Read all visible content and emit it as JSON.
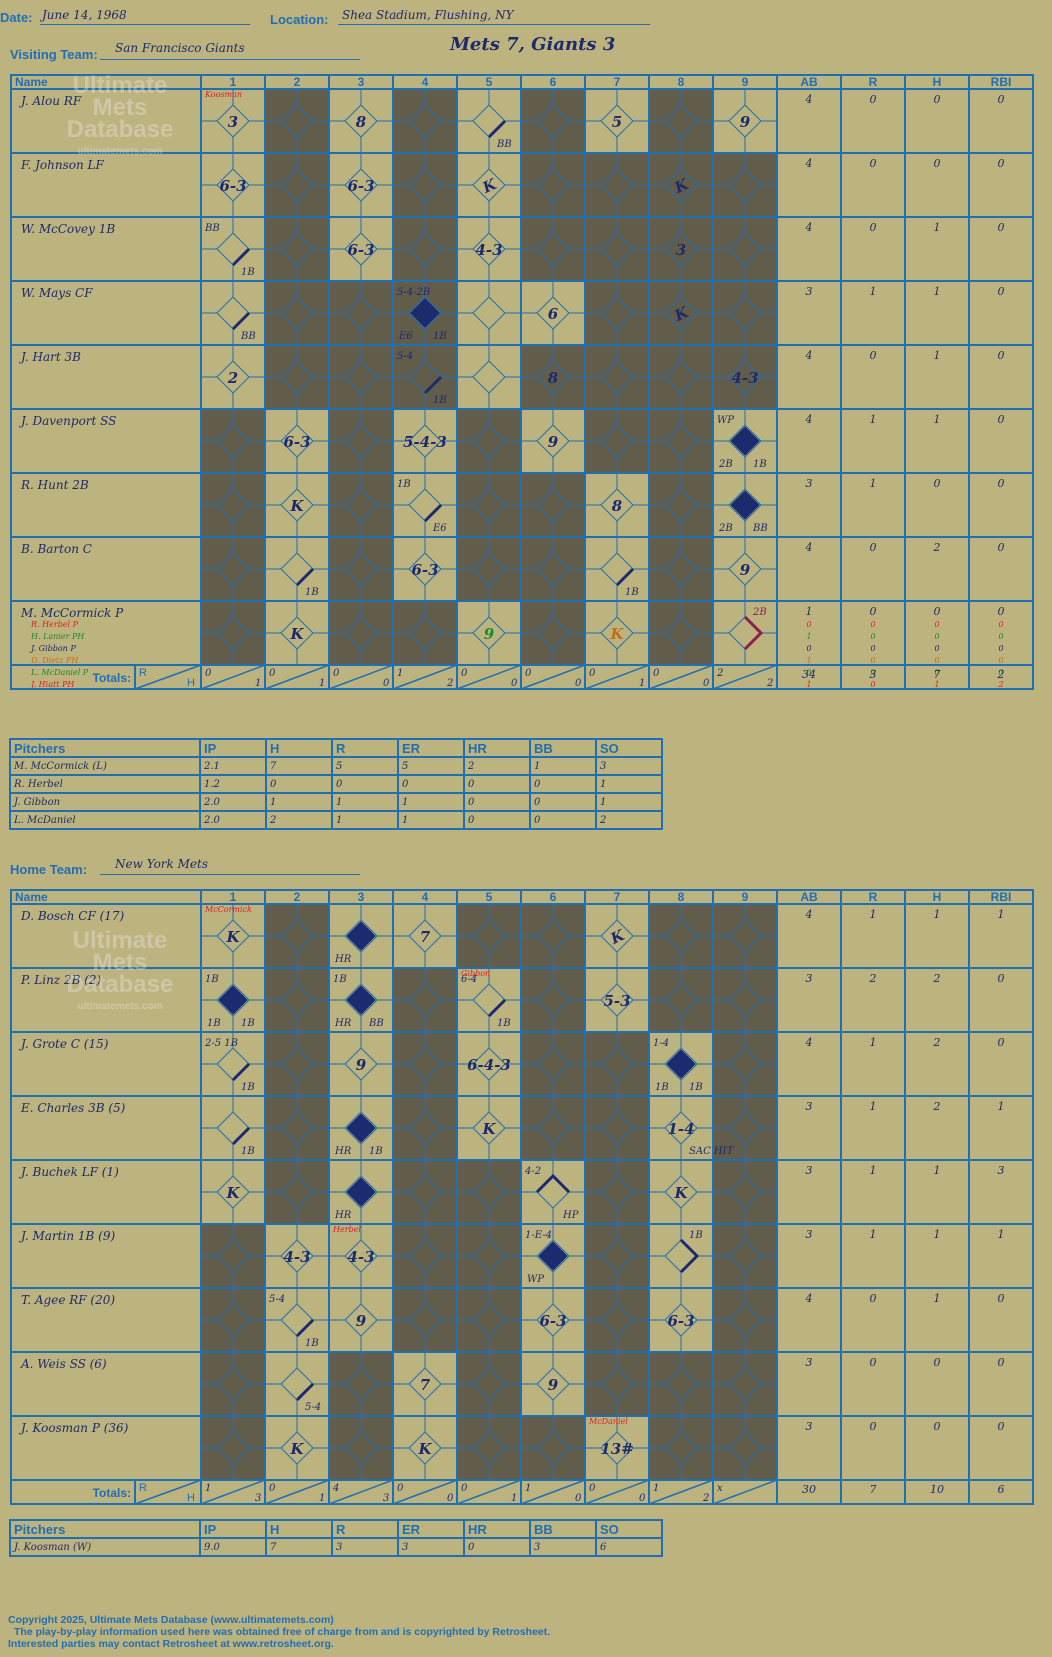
{
  "labels": {
    "date": "Date:",
    "location": "Location:",
    "visiting": "Visiting Team:",
    "home": "Home Team:",
    "name": "Name",
    "totals": "Totals:",
    "r": "R",
    "h": "H",
    "pitchers": "Pitchers"
  },
  "game": {
    "date": "June 14, 1968",
    "location": "Shea Stadium, Flushing, NY",
    "title": "Mets 7, Giants 3"
  },
  "innings": [
    "1",
    "2",
    "3",
    "4",
    "5",
    "6",
    "7",
    "8",
    "9"
  ],
  "stat_headers": [
    "AB",
    "R",
    "H",
    "RBI"
  ],
  "pitch_headers": [
    "IP",
    "H",
    "R",
    "ER",
    "HR",
    "BB",
    "SO"
  ],
  "colors": {
    "bg": "#bdb37e",
    "line": "#1f6fb4",
    "dark": "#625d4b",
    "ink": "#1c2a6e",
    "red": "#e02020",
    "green": "#1a8a30"
  },
  "watermark": {
    "line1": "Ultimate",
    "line2": "Mets",
    "line3": "Database",
    "url": "ultimatemets.com"
  },
  "visitors": {
    "team": "San Francisco Giants",
    "batters": [
      {
        "name": "J. Alou RF",
        "stats": [
          "4",
          "0",
          "0",
          "0"
        ]
      },
      {
        "name": "F. Johnson LF",
        "stats": [
          "4",
          "0",
          "0",
          "0"
        ]
      },
      {
        "name": "W. McCovey 1B",
        "stats": [
          "4",
          "0",
          "1",
          "0"
        ]
      },
      {
        "name": "W. Mays CF",
        "stats": [
          "3",
          "1",
          "1",
          "0"
        ]
      },
      {
        "name": "J. Hart 3B",
        "stats": [
          "4",
          "0",
          "1",
          "0"
        ]
      },
      {
        "name": "J. Davenport SS",
        "stats": [
          "4",
          "1",
          "1",
          "0"
        ]
      },
      {
        "name": "R. Hunt 2B",
        "stats": [
          "3",
          "1",
          "0",
          "0"
        ]
      },
      {
        "name": "B. Barton C",
        "stats": [
          "4",
          "0",
          "2",
          "0"
        ]
      },
      {
        "name": "M. McCormick P",
        "stats": [
          "1",
          "0",
          "0",
          "0"
        ]
      }
    ],
    "subs": [
      {
        "name": "R. Herbel P",
        "color": "#e02020",
        "stats": [
          "0",
          "0",
          "0",
          "0"
        ]
      },
      {
        "name": "H. Lanier PH",
        "color": "#1a8a30",
        "stats": [
          "1",
          "0",
          "0",
          "0"
        ]
      },
      {
        "name": "J. Gibbon P",
        "color": "#1c2a6e",
        "stats": [
          "0",
          "0",
          "0",
          "0"
        ]
      },
      {
        "name": "D. Dietz PH",
        "color": "#c07010",
        "stats": [
          "1",
          "0",
          "0",
          "0"
        ]
      },
      {
        "name": "L. McDaniel P",
        "color": "#1a8a30",
        "stats": [
          "0",
          "0",
          "0",
          "0"
        ]
      },
      {
        "name": "J. Hiatt PH",
        "color": "#e02020",
        "stats": [
          "1",
          "0",
          "1",
          "2"
        ]
      }
    ],
    "dark": [
      [
        1,
        3,
        5,
        7
      ],
      [
        1,
        3,
        5,
        6,
        7,
        8
      ],
      [
        1,
        3,
        5,
        6,
        7,
        8
      ],
      [
        1,
        2,
        3,
        6,
        7,
        8
      ],
      [
        1,
        2,
        3,
        5,
        6,
        7,
        8
      ],
      [
        0,
        2,
        4,
        6,
        7
      ],
      [
        0,
        2,
        4,
        5,
        7
      ],
      [
        0,
        2,
        4,
        5,
        7
      ],
      [
        0,
        2,
        3,
        5,
        7
      ]
    ],
    "plays": [
      {
        "r": 0,
        "c": 0,
        "t": "3"
      },
      {
        "r": 0,
        "c": 2,
        "t": "8"
      },
      {
        "r": 0,
        "c": 4,
        "t": "BB",
        "type": "walk"
      },
      {
        "r": 0,
        "c": 6,
        "t": "5"
      },
      {
        "r": 0,
        "c": 8,
        "t": "9"
      },
      {
        "r": 1,
        "c": 0,
        "t": "6-3"
      },
      {
        "r": 1,
        "c": 2,
        "t": "6-3"
      },
      {
        "r": 1,
        "c": 4,
        "t": "K",
        "rev": true
      },
      {
        "r": 1,
        "c": 7,
        "t": "K",
        "rev": true
      },
      {
        "r": 2,
        "c": 0,
        "t": "1B",
        "type": "hit",
        "extra": "BB"
      },
      {
        "r": 2,
        "c": 2,
        "t": "6-3"
      },
      {
        "r": 2,
        "c": 4,
        "t": "4-3"
      },
      {
        "r": 2,
        "c": 7,
        "t": "3"
      },
      {
        "r": 3,
        "c": 0,
        "t": "BB",
        "type": "walk"
      },
      {
        "r": 3,
        "c": 3,
        "t": "E6",
        "type": "run",
        "extra": "5-4-2B",
        "extra2": "1B"
      },
      {
        "r": 3,
        "c": 5,
        "t": "6"
      },
      {
        "r": 3,
        "c": 7,
        "t": "K",
        "rev": true
      },
      {
        "r": 4,
        "c": 0,
        "t": "2"
      },
      {
        "r": 4,
        "c": 3,
        "t": "1B",
        "type": "hit",
        "extra": "5-4"
      },
      {
        "r": 4,
        "c": 5,
        "t": "8"
      },
      {
        "r": 4,
        "c": 8,
        "t": "4-3"
      },
      {
        "r": 5,
        "c": 1,
        "t": "6-3"
      },
      {
        "r": 5,
        "c": 3,
        "t": "5-4-3"
      },
      {
        "r": 5,
        "c": 5,
        "t": "9"
      },
      {
        "r": 5,
        "c": 8,
        "t": "2B",
        "type": "run",
        "extra": "WP",
        "extra2": "1B"
      },
      {
        "r": 6,
        "c": 1,
        "t": "K"
      },
      {
        "r": 6,
        "c": 3,
        "t": "E6",
        "type": "hit",
        "extra": "1B"
      },
      {
        "r": 6,
        "c": 6,
        "t": "8"
      },
      {
        "r": 6,
        "c": 8,
        "t": "2B",
        "type": "run",
        "extra2": "BB"
      },
      {
        "r": 7,
        "c": 1,
        "t": "1B",
        "type": "hit"
      },
      {
        "r": 7,
        "c": 3,
        "t": "6-3"
      },
      {
        "r": 7,
        "c": 6,
        "t": "1B",
        "type": "hit"
      },
      {
        "r": 7,
        "c": 8,
        "t": "9"
      },
      {
        "r": 8,
        "c": 1,
        "t": "K"
      },
      {
        "r": 8,
        "c": 4,
        "t": "9",
        "color": "#1a8a30"
      },
      {
        "r": 8,
        "c": 6,
        "t": "K",
        "color": "#c07010"
      },
      {
        "r": 8,
        "c": 8,
        "t": "2B",
        "type": "double",
        "color": "#8a2050"
      }
    ],
    "pitcher_marks": [
      {
        "r": 0,
        "c": 0,
        "t": "Koosman"
      }
    ],
    "totals": [
      [
        "0",
        "1"
      ],
      [
        "0",
        "1"
      ],
      [
        "0",
        "0"
      ],
      [
        "1",
        "2"
      ],
      [
        "0",
        "0"
      ],
      [
        "0",
        "0"
      ],
      [
        "0",
        "1"
      ],
      [
        "0",
        "0"
      ],
      [
        "2",
        "2"
      ]
    ],
    "stat_totals": [
      "34",
      "3",
      "7",
      "2"
    ],
    "pitchers": [
      {
        "name": "M. McCormick (L)",
        "stats": [
          "2.1",
          "7",
          "5",
          "5",
          "2",
          "1",
          "3"
        ]
      },
      {
        "name": "R. Herbel",
        "stats": [
          "1.2",
          "0",
          "0",
          "0",
          "0",
          "0",
          "1"
        ]
      },
      {
        "name": "J. Gibbon",
        "stats": [
          "2.0",
          "1",
          "1",
          "1",
          "0",
          "0",
          "1"
        ]
      },
      {
        "name": "L. McDaniel",
        "stats": [
          "2.0",
          "2",
          "1",
          "1",
          "0",
          "0",
          "2"
        ]
      }
    ]
  },
  "home": {
    "team": "New York Mets",
    "batters": [
      {
        "name": "D. Bosch CF (17)",
        "stats": [
          "4",
          "1",
          "1",
          "1"
        ]
      },
      {
        "name": "P. Linz 2B (2)",
        "stats": [
          "3",
          "2",
          "2",
          "0"
        ]
      },
      {
        "name": "J. Grote C (15)",
        "stats": [
          "4",
          "1",
          "2",
          "0"
        ]
      },
      {
        "name": "E. Charles 3B (5)",
        "stats": [
          "3",
          "1",
          "2",
          "1"
        ]
      },
      {
        "name": "J. Buchek LF (1)",
        "stats": [
          "3",
          "1",
          "1",
          "3"
        ]
      },
      {
        "name": "J. Martin 1B (9)",
        "stats": [
          "3",
          "1",
          "1",
          "1"
        ]
      },
      {
        "name": "T. Agee RF (20)",
        "stats": [
          "4",
          "0",
          "1",
          "0"
        ]
      },
      {
        "name": "A. Weis SS (6)",
        "stats": [
          "3",
          "0",
          "0",
          "0"
        ]
      },
      {
        "name": "J. Koosman P (36)",
        "stats": [
          "3",
          "0",
          "0",
          "0"
        ]
      }
    ],
    "subs": [],
    "dark": [
      [
        1,
        4,
        5,
        7,
        8
      ],
      [
        1,
        3,
        5,
        7,
        8
      ],
      [
        1,
        3,
        5,
        6,
        8
      ],
      [
        1,
        3,
        5,
        6,
        8
      ],
      [
        1,
        3,
        4,
        6,
        8
      ],
      [
        0,
        3,
        4,
        6,
        8
      ],
      [
        0,
        3,
        4,
        6,
        8
      ],
      [
        0,
        2,
        4,
        6,
        7,
        8
      ],
      [
        0,
        2,
        4,
        5,
        7,
        8
      ]
    ],
    "plays": [
      {
        "r": 0,
        "c": 0,
        "t": "K"
      },
      {
        "r": 0,
        "c": 2,
        "t": "HR",
        "type": "hr"
      },
      {
        "r": 0,
        "c": 3,
        "t": "7"
      },
      {
        "r": 0,
        "c": 6,
        "t": "K",
        "rev": true
      },
      {
        "r": 1,
        "c": 0,
        "t": "1B",
        "type": "run",
        "extra": "1B",
        "extra2": "1B"
      },
      {
        "r": 1,
        "c": 2,
        "t": "HR",
        "type": "run",
        "extra": "1B",
        "extra2": "BB"
      },
      {
        "r": 1,
        "c": 4,
        "t": "1B",
        "type": "hit",
        "extra": "6-4"
      },
      {
        "r": 1,
        "c": 6,
        "t": "5-3"
      },
      {
        "r": 2,
        "c": 0,
        "t": "1B",
        "type": "hit",
        "extra": "2-5 1B"
      },
      {
        "r": 2,
        "c": 2,
        "t": "9"
      },
      {
        "r": 2,
        "c": 4,
        "t": "6-4-3"
      },
      {
        "r": 2,
        "c": 7,
        "t": "1B",
        "type": "run",
        "extra": "1-4",
        "extra2": "1B"
      },
      {
        "r": 3,
        "c": 0,
        "t": "1B",
        "type": "hit"
      },
      {
        "r": 3,
        "c": 2,
        "t": "HR",
        "type": "run",
        "extra2": "1B"
      },
      {
        "r": 3,
        "c": 4,
        "t": "K"
      },
      {
        "r": 3,
        "c": 7,
        "t": "1-4",
        "extra2": "SAC HIT"
      },
      {
        "r": 4,
        "c": 0,
        "t": "K"
      },
      {
        "r": 4,
        "c": 2,
        "t": "HR",
        "type": "hr"
      },
      {
        "r": 4,
        "c": 5,
        "t": "HP",
        "type": "open",
        "extra": "4-2"
      },
      {
        "r": 4,
        "c": 7,
        "t": "K"
      },
      {
        "r": 5,
        "c": 1,
        "t": "4-3"
      },
      {
        "r": 5,
        "c": 2,
        "t": "4-3"
      },
      {
        "r": 5,
        "c": 5,
        "t": "WP",
        "type": "run",
        "extra": "1-E-4"
      },
      {
        "r": 5,
        "c": 7,
        "t": "1B",
        "type": "double"
      },
      {
        "r": 6,
        "c": 1,
        "t": "1B",
        "type": "hit",
        "extra": "5-4"
      },
      {
        "r": 6,
        "c": 2,
        "t": "9"
      },
      {
        "r": 6,
        "c": 5,
        "t": "6-3"
      },
      {
        "r": 6,
        "c": 7,
        "t": "6-3"
      },
      {
        "r": 7,
        "c": 1,
        "t": "5-4",
        "type": "hit"
      },
      {
        "r": 7,
        "c": 3,
        "t": "7"
      },
      {
        "r": 7,
        "c": 5,
        "t": "9"
      },
      {
        "r": 8,
        "c": 1,
        "t": "K"
      },
      {
        "r": 8,
        "c": 3,
        "t": "K"
      },
      {
        "r": 8,
        "c": 6,
        "t": "13#"
      }
    ],
    "pitcher_marks": [
      {
        "r": 0,
        "c": 0,
        "t": "McCormick"
      },
      {
        "r": 1,
        "c": 4,
        "t": "Gibbon"
      },
      {
        "r": 5,
        "c": 2,
        "t": "Herbel"
      },
      {
        "r": 8,
        "c": 6,
        "t": "McDaniel"
      }
    ],
    "totals": [
      [
        "1",
        "3"
      ],
      [
        "0",
        "1"
      ],
      [
        "4",
        "3"
      ],
      [
        "0",
        "0"
      ],
      [
        "0",
        "1"
      ],
      [
        "1",
        "0"
      ],
      [
        "0",
        "0"
      ],
      [
        "1",
        "2"
      ],
      [
        "x",
        ""
      ]
    ],
    "stat_totals": [
      "30",
      "7",
      "10",
      "6"
    ],
    "pitchers": [
      {
        "name": "J. Koosman (W)",
        "stats": [
          "9.0",
          "7",
          "3",
          "3",
          "0",
          "3",
          "6"
        ]
      }
    ]
  },
  "footer": {
    "line1": "Copyright 2025, Ultimate Mets Database (www.ultimatemets.com)",
    "line2": "The play-by-play information used here was obtained free of charge from and is copyrighted by Retrosheet.",
    "line3": "Interested parties may contact Retrosheet at www.retrosheet.org."
  }
}
